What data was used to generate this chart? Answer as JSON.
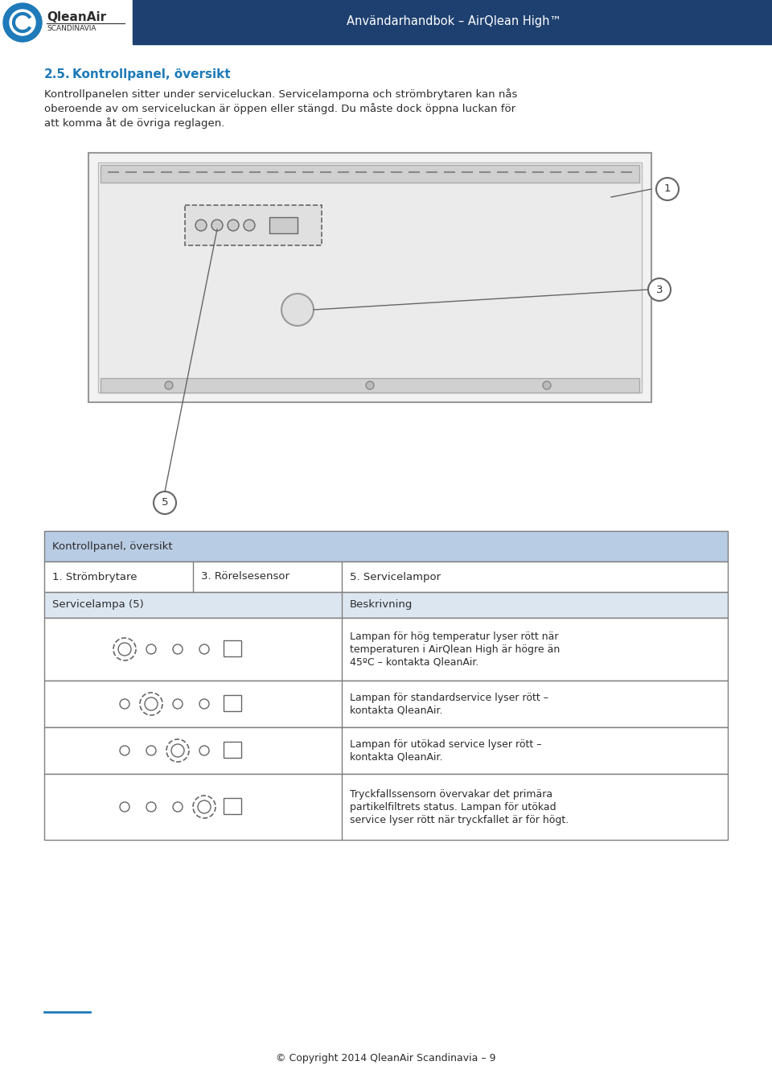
{
  "header_bg": "#1e4070",
  "header_text": "Användarhandbok – AirQlean High™",
  "header_text_color": "#ffffff",
  "logo_text_main": "QleanAir",
  "logo_text_sub": "SCANDINAVIA",
  "page_bg": "#ffffff",
  "section_title": "2.5.",
  "section_title_color": "#1e7ab8",
  "section_heading": "Kontrollpanel, översikt",
  "section_heading_color": "#1e7ab8",
  "body_text_line1": "Kontrollpanelen sitter under serviceluckan. Servicelamporna och strömbrytaren kan nås",
  "body_text_line2": "oberoende av om serviceluckan är öppen eller stängd. Du måste dock öppna luckan för",
  "body_text_line3": "att komma åt de övriga reglagen.",
  "table_header_bg": "#b8cce4",
  "table_row_bg": "#dce6f1",
  "table_border": "#7f7f7f",
  "table_title": "Kontrollpanel, översikt",
  "col1_header": "1. Strömbrytare",
  "col2_header": "3. Rörelsesensor",
  "col3_header": "5. Servicelampor",
  "row_header_left": "Servicelampa (5)",
  "row_header_right": "Beskrivning",
  "rows": [
    {
      "lamp_index": 1,
      "description": "Lampan för hög temperatur lyser rött när\ntemperaturen i AirQlean High är högre än\n45ºC – kontakta QleanAir."
    },
    {
      "lamp_index": 2,
      "description": "Lampan för standardservice lyser rött –\nkontakta QleanAir."
    },
    {
      "lamp_index": 3,
      "description": "Lampan för utökad service lyser rött –\nkontakta QleanAir."
    },
    {
      "lamp_index": 4,
      "description": "Tryckfallssensorn övervakar det primära\npartikelfiltrets status. Lampan för utökad\nservice lyser rött när tryckfallet är för högt."
    }
  ],
  "footer_line_color": "#1e7ab8",
  "footer_text": "© Copyright 2014 QleanAir Scandinavia – 9",
  "image_label_1": "1",
  "image_label_3": "3",
  "image_label_5": "5"
}
